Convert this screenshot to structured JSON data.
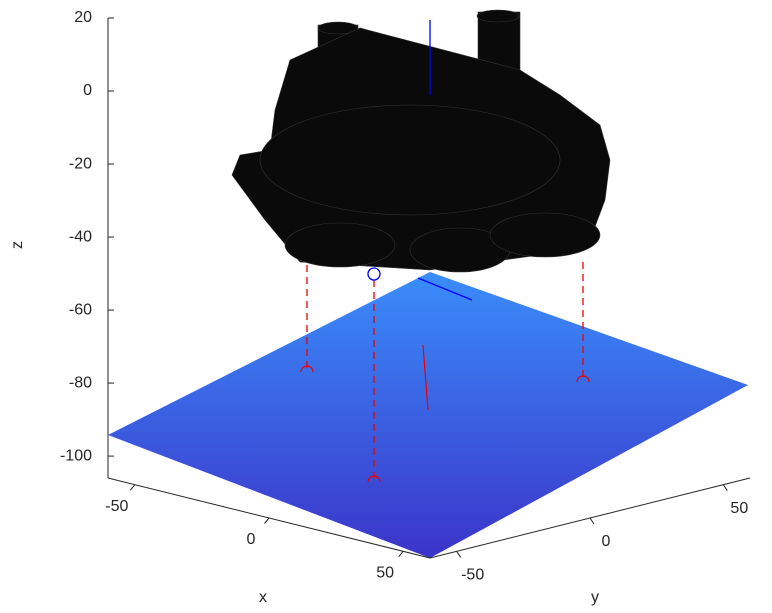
{
  "chart_data": {
    "type": "surface3d",
    "xlabel": "x",
    "ylabel": "y",
    "zlabel": "z",
    "xlim": [
      -60,
      60
    ],
    "ylim": [
      -60,
      60
    ],
    "zlim": [
      -106,
      20
    ],
    "xticks": [
      -50,
      0,
      50
    ],
    "yticks": [
      -50,
      0,
      50
    ],
    "zticks": [
      20,
      0,
      -20,
      -40,
      -60,
      -80,
      -100
    ]
  }
}
